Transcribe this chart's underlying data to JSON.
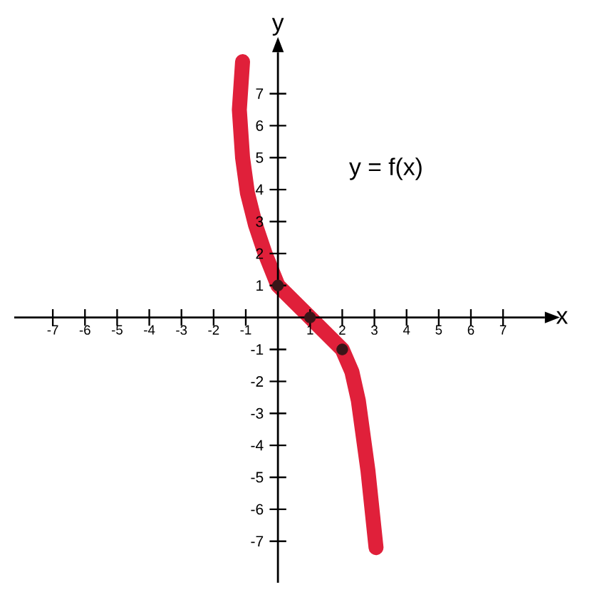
{
  "chart_data": {
    "type": "line",
    "xlabel": "x",
    "ylabel": "y",
    "annotations": [
      "y = f(x)"
    ],
    "xlim": [
      -8.2,
      8.3
    ],
    "ylim": [
      -8.3,
      8.3
    ],
    "xticks": [
      -7,
      -6,
      -5,
      -4,
      -3,
      -2,
      -1,
      1,
      2,
      3,
      4,
      5,
      6,
      7
    ],
    "yticks": [
      -7,
      -6,
      -5,
      -4,
      -3,
      -2,
      -1,
      1,
      2,
      3,
      4,
      5,
      6,
      7
    ],
    "series": [
      {
        "color": "#e0203a",
        "marker": "none",
        "x": [
          -1.1,
          -1.2,
          -1.1,
          -0.95,
          -0.7,
          -0.4,
          0,
          0.5,
          1,
          1.5,
          2,
          2.3,
          2.5,
          2.8,
          3.05
        ],
        "values": [
          8.0,
          6.5,
          5.0,
          3.9,
          2.9,
          2.0,
          1,
          0.5,
          0,
          -0.5,
          -1,
          -1.7,
          -2.6,
          -4.8,
          -7.2
        ]
      },
      {
        "type": "scatter",
        "color": "#3a1518",
        "marker": "circle",
        "x": [
          0,
          1,
          2
        ],
        "values": [
          1,
          0,
          -1
        ]
      }
    ]
  }
}
